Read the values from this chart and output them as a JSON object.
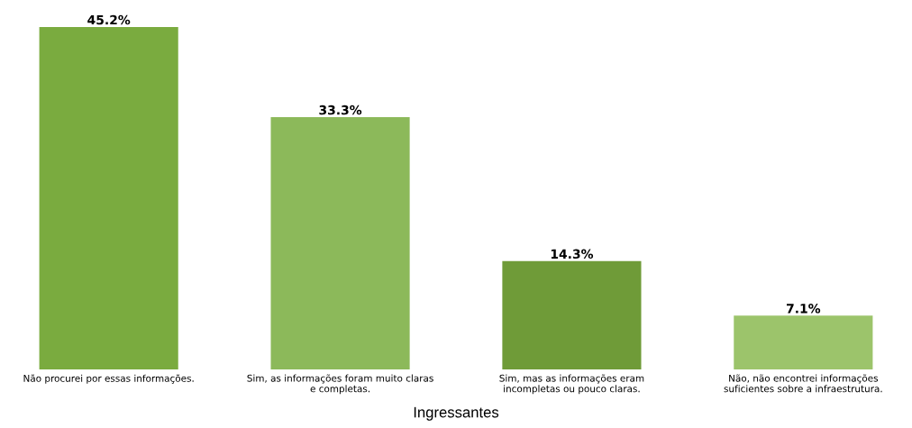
{
  "chart_data": {
    "type": "bar",
    "xlabel": "Ingressantes",
    "categories": [
      "Não procurei por essas informações.",
      "Sim, as informações foram muito claras\ne completas.",
      "Sim, mas as informações eram\nincompletas ou pouco claras.",
      "Não, não encontrei informações\nsuficientes sobre a infraestrutura."
    ],
    "values": [
      45.2,
      33.3,
      14.3,
      7.1
    ],
    "value_labels": [
      "45.2%",
      "33.3%",
      "14.3%",
      "7.1%"
    ],
    "colors": [
      "#7aab3f",
      "#8cb95a",
      "#6f9b38",
      "#9cc46b"
    ],
    "grid": false,
    "legend": false,
    "tick_labels": "x"
  }
}
